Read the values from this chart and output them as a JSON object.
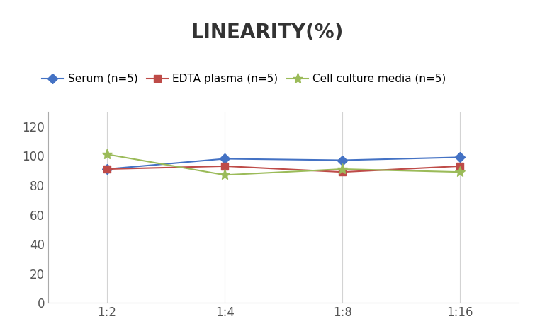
{
  "title": "LINEARITY(%)",
  "x_labels": [
    "1:2",
    "1:4",
    "1:8",
    "1:16"
  ],
  "x_positions": [
    0,
    1,
    2,
    3
  ],
  "series": [
    {
      "label": "Serum (n=5)",
      "color": "#4472C4",
      "marker": "D",
      "values": [
        91,
        98,
        97,
        99
      ]
    },
    {
      "label": "EDTA plasma (n=5)",
      "color": "#BE4B48",
      "marker": "s",
      "values": [
        91,
        93,
        89,
        93
      ]
    },
    {
      "label": "Cell culture media (n=5)",
      "color": "#9BBB59",
      "marker": "*",
      "values": [
        101,
        87,
        91,
        89
      ]
    }
  ],
  "ylim": [
    0,
    130
  ],
  "yticks": [
    0,
    20,
    40,
    60,
    80,
    100,
    120
  ],
  "title_fontsize": 20,
  "legend_fontsize": 11,
  "tick_fontsize": 12,
  "background_color": "#ffffff",
  "grid_color": "#d3d3d3"
}
